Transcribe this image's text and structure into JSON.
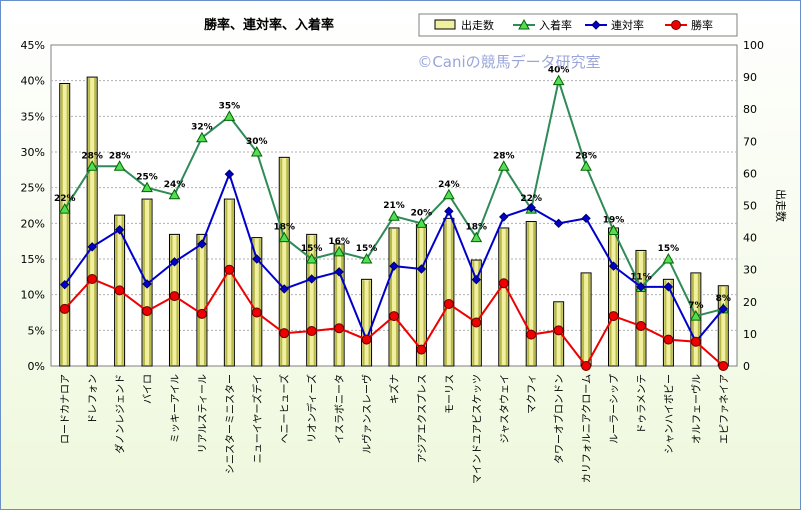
{
  "chart_data": {
    "type": "bar+line",
    "title": "勝率、連対率、入着率",
    "watermark": "©Caniの競馬データ研究室",
    "y2label": "出走数",
    "yticks": [
      "0%",
      "5%",
      "10%",
      "15%",
      "20%",
      "25%",
      "30%",
      "35%",
      "40%",
      "45%"
    ],
    "ylim": [
      0,
      45
    ],
    "y2ticks": [
      "0",
      "10",
      "20",
      "30",
      "40",
      "50",
      "60",
      "70",
      "80",
      "90",
      "100"
    ],
    "y2lim": [
      0,
      100
    ],
    "grid": true,
    "legend_position": "top-right",
    "categories": [
      "ロードカナロア",
      "ドレフォン",
      "ダノンレジェンド",
      "バイロ",
      "ミッキーアイル",
      "リアルスティール",
      "シニスターミニスター",
      "ニューイヤーズデイ",
      "ヘニーヒューズ",
      "リオンディーズ",
      "イスラボニータ",
      "ルヴァンスレーヴ",
      "キズナ",
      "アジアエクスプレス",
      "モーリス",
      "マインドユアビスケッツ",
      "ジャスタウェイ",
      "マクフィ",
      "タワーオブロンドン",
      "カリフォルニアクローム",
      "ルーラーシップ",
      "ドゥラメンテ",
      "シャンハイボビー",
      "オルフェーヴル",
      "エピファネイア"
    ],
    "series": [
      {
        "name": "出走数",
        "kind": "bar",
        "axis": "right",
        "color": "#f0f0a0",
        "values": [
          88,
          90,
          47,
          52,
          41,
          41,
          52,
          40,
          65,
          41,
          38,
          27,
          43,
          44,
          46,
          33,
          43,
          45,
          20,
          29,
          43,
          36,
          27,
          29,
          25
        ]
      },
      {
        "name": "入着率",
        "kind": "line",
        "axis": "left",
        "color": "#2e8b57",
        "values": [
          22,
          28,
          28,
          25,
          24,
          32,
          35,
          30,
          18,
          15,
          16,
          15,
          21,
          20,
          24,
          18,
          28,
          22,
          40,
          28,
          19,
          11,
          15,
          7,
          8
        ],
        "labels": [
          "22%",
          "28%",
          "28%",
          "25%",
          "24%",
          "32%",
          "35%",
          "30%",
          "18%",
          "15%",
          "16%",
          "15%",
          "21%",
          "20%",
          "24%",
          "18%",
          "28%",
          "22%",
          "40%",
          "28%",
          "19%",
          "11%",
          "15%",
          "7%",
          "8%"
        ]
      },
      {
        "name": "連対率",
        "kind": "line",
        "axis": "left",
        "color": "#0000cc",
        "values": [
          11.4,
          16.7,
          19.1,
          11.5,
          14.6,
          17.1,
          26.9,
          15.0,
          10.8,
          12.2,
          13.2,
          3.7,
          14.0,
          13.6,
          21.7,
          12.1,
          20.9,
          22.2,
          20.0,
          20.7,
          14.0,
          11.1,
          11.1,
          3.4,
          8.0
        ]
      },
      {
        "name": "勝率",
        "kind": "line",
        "axis": "left",
        "color": "#ee0000",
        "values": [
          8.0,
          12.2,
          10.6,
          7.7,
          9.8,
          7.3,
          13.5,
          7.5,
          4.6,
          4.9,
          5.3,
          3.7,
          7.0,
          2.3,
          8.7,
          6.1,
          11.6,
          4.4,
          5.0,
          0.0,
          7.0,
          5.6,
          3.7,
          3.4,
          0.0
        ]
      }
    ]
  }
}
